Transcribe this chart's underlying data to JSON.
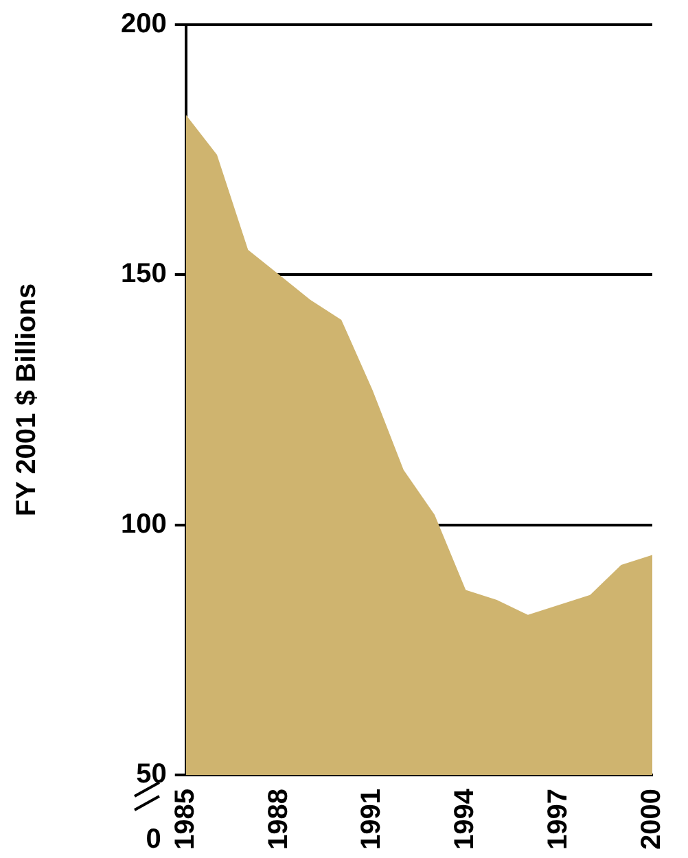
{
  "chart_data": {
    "type": "area",
    "ylabel": "FY 2001 $ Billions",
    "x": [
      1985,
      1986,
      1987,
      1988,
      1989,
      1990,
      1991,
      1992,
      1993,
      1994,
      1995,
      1996,
      1997,
      1998,
      1999,
      2000
    ],
    "series": [
      {
        "color": "#cfb46f",
        "values": [
          182,
          174,
          155,
          150,
          145,
          141,
          127,
          111,
          102,
          87,
          85,
          82,
          84,
          86,
          92,
          94
        ]
      }
    ],
    "xlim": [
      1985,
      2000
    ],
    "xticks": [
      1985,
      1988,
      1991,
      1994,
      1997,
      2000
    ],
    "ylim": [
      50,
      200
    ],
    "yticks": [
      50,
      100,
      150,
      200
    ],
    "grid": "y",
    "annotations": [
      "0"
    ]
  }
}
